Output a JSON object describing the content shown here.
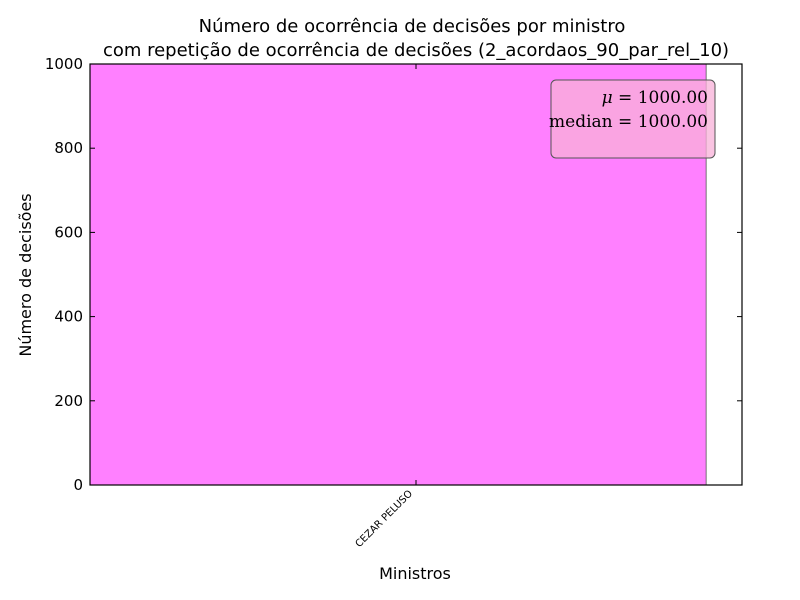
{
  "chart_data": {
    "type": "bar",
    "title_line1": "Número de ocorrência de decisões por ministro",
    "title_line2": "com repetição de ocorrência de decisões (2_acordaos_90_par_rel_10)",
    "xlabel": "Ministros",
    "ylabel": "Número de decisões",
    "categories": [
      "CEZAR PELUSO"
    ],
    "values": [
      1000
    ],
    "ylim": [
      0,
      1000
    ],
    "yticks": [
      0,
      200,
      400,
      600,
      800,
      1000
    ],
    "bar_color": "#ff80ff",
    "stats": {
      "mu_symbol": "μ",
      "mu_value": "1000.00",
      "median_label": "median",
      "median_value": "1000.00",
      "box_color": "#f8b0d8"
    },
    "grid": false,
    "category_label_rotation": "45 degrees"
  }
}
